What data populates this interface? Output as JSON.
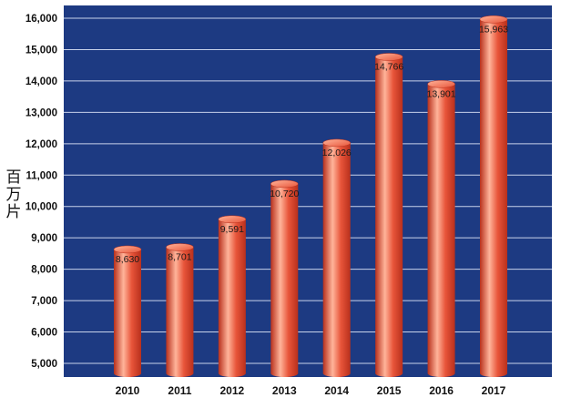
{
  "chart_data": {
    "type": "bar",
    "title": "",
    "xlabel": "",
    "ylabel": "百万片",
    "ylim": [
      5000,
      16000
    ],
    "yticks": [
      "5,000",
      "6,000",
      "7,000",
      "8,000",
      "9,000",
      "10,000",
      "11,000",
      "12,000",
      "13,000",
      "14,000",
      "15,000",
      "16,000"
    ],
    "categories": [
      "2010",
      "2011",
      "2012",
      "2013",
      "2014",
      "2015",
      "2016",
      "2017"
    ],
    "values": [
      8630,
      8701,
      9591,
      10720,
      12026,
      14766,
      13901,
      15963
    ],
    "data_labels": [
      "8,630",
      "8,701",
      "9,591",
      "10,720",
      "12,026",
      "14,766",
      "13,901",
      "15,963"
    ],
    "grid": true,
    "colors": {
      "plot_background": "#1d3a82",
      "gridline": "#c8d2ea",
      "bar": "#e8553a",
      "bar_highlight": "#ffb49a",
      "bar_shadow": "#b8301c"
    }
  }
}
